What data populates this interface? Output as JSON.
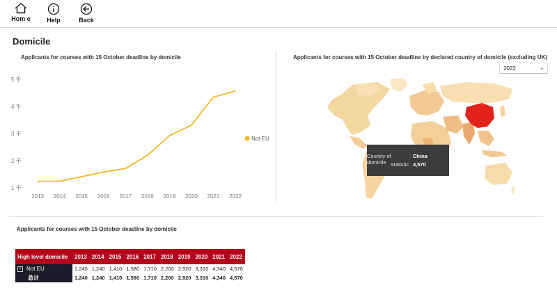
{
  "nav": {
    "home_label": "Hom e",
    "help_label": "Help",
    "back_label": "Back"
  },
  "section_title": "Domicile",
  "line_panel": {
    "title": "Applicants for courses with 15 October deadline  by domicile"
  },
  "map_panel": {
    "title": "Applicants for courses with 15 October deadline  by declared country of domicile (excluding UK)",
    "year_select": {
      "value": "2022"
    },
    "highlight_color": "#e2231a",
    "tooltip": {
      "country_key": "Country of domicile",
      "country_value": "China",
      "statistic_key": "Statistic",
      "statistic_value": "4,570"
    }
  },
  "table_panel": {
    "title": "Applicants for courses with 15 October deadline  by domicile",
    "header": [
      "High level domicile",
      "2013",
      "2014",
      "2015",
      "2016",
      "2017",
      "2018",
      "2019",
      "2020",
      "2021",
      "2022"
    ],
    "rows": [
      {
        "label": "Not EU",
        "values": [
          "1,240",
          "1,240",
          "1,410",
          "1,580",
          "1,710",
          "2,200",
          "2,920",
          "3,310",
          "4,340",
          "4,570"
        ]
      },
      {
        "label": "总计",
        "values": [
          "1,240",
          "1,240",
          "1,410",
          "1,580",
          "1,710",
          "2,200",
          "2,920",
          "3,310",
          "4,340",
          "4,570"
        ]
      }
    ]
  },
  "chart_data": {
    "type": "line",
    "title": "Applicants for courses with 15 October deadline  by domicile",
    "x": [
      "2013",
      "2014",
      "2015",
      "2016",
      "2017",
      "2018",
      "2019",
      "2020",
      "2021",
      "2022"
    ],
    "series": [
      {
        "name": "Not EU",
        "color": "#f2b824",
        "values": [
          1240,
          1240,
          1410,
          1580,
          1710,
          2200,
          2920,
          3310,
          4340,
          4570
        ]
      }
    ],
    "y_ticks": [
      {
        "value": 1000,
        "label": "1 千"
      },
      {
        "value": 2000,
        "label": "2 千"
      },
      {
        "value": 3000,
        "label": "3 千"
      },
      {
        "value": 4000,
        "label": "4 千"
      },
      {
        "value": 5000,
        "label": "5 千"
      }
    ],
    "ylim": [
      1000,
      5000
    ],
    "legend_position": "right",
    "grid": false
  }
}
